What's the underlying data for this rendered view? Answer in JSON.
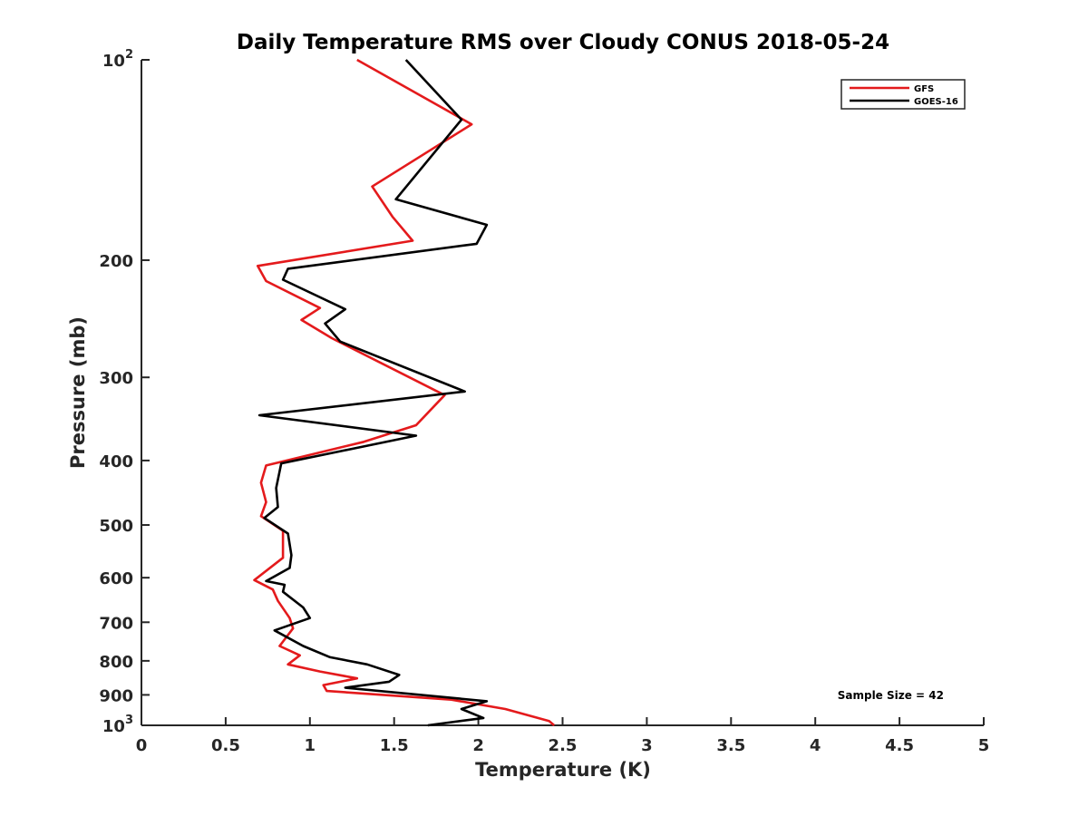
{
  "chart_data": {
    "type": "line",
    "title": "Daily Temperature RMS over Cloudy CONUS 2018-05-24",
    "xlabel": "Temperature (K)",
    "ylabel": "Pressure (mb)",
    "xlim": [
      0,
      5
    ],
    "ylim": [
      1000,
      100
    ],
    "y_scale": "log",
    "y_reversed": true,
    "grid": false,
    "legend_position": "top-right",
    "x_ticks": [
      {
        "value": 0,
        "label": "0"
      },
      {
        "value": 0.5,
        "label": "0.5"
      },
      {
        "value": 1,
        "label": "1"
      },
      {
        "value": 1.5,
        "label": "1.5"
      },
      {
        "value": 2,
        "label": "2"
      },
      {
        "value": 2.5,
        "label": "2.5"
      },
      {
        "value": 3,
        "label": "3"
      },
      {
        "value": 3.5,
        "label": "3.5"
      },
      {
        "value": 4,
        "label": "4"
      },
      {
        "value": 4.5,
        "label": "4.5"
      },
      {
        "value": 5,
        "label": "5"
      }
    ],
    "y_ticks": [
      {
        "value": 100,
        "base": "10",
        "exp": "2"
      },
      {
        "value": 200,
        "label": "200"
      },
      {
        "value": 300,
        "label": "300"
      },
      {
        "value": 400,
        "label": "400"
      },
      {
        "value": 500,
        "label": "500"
      },
      {
        "value": 600,
        "label": "600"
      },
      {
        "value": 700,
        "label": "700"
      },
      {
        "value": 800,
        "label": "800"
      },
      {
        "value": 900,
        "label": "900"
      },
      {
        "value": 1000,
        "base": "10",
        "exp": "3"
      }
    ],
    "series": [
      {
        "name": "GFS",
        "color": "#e41a1c",
        "x": [
          1.28,
          1.96,
          1.37,
          1.49,
          1.61,
          0.69,
          0.74,
          1.06,
          0.95,
          1.13,
          1.8,
          1.63,
          1.32,
          0.74,
          0.71,
          0.74,
          0.71,
          0.84,
          0.84,
          0.67,
          0.78,
          0.81,
          0.88,
          0.9,
          0.82,
          0.94,
          0.87,
          1.06,
          1.28,
          1.08,
          1.1,
          1.84,
          2.16,
          2.42,
          2.45
        ],
        "y": [
          100,
          125,
          155,
          172,
          187,
          204,
          215,
          236,
          246,
          262,
          319,
          354,
          375,
          407,
          432,
          462,
          485,
          510,
          560,
          605,
          625,
          650,
          690,
          715,
          760,
          785,
          810,
          830,
          850,
          870,
          888,
          915,
          945,
          985,
          1000
        ]
      },
      {
        "name": "GOES-16",
        "color": "#000000",
        "x": [
          1.57,
          1.9,
          1.51,
          2.05,
          1.99,
          0.87,
          0.84,
          1.21,
          1.09,
          1.18,
          1.92,
          0.7,
          1.63,
          0.83,
          0.8,
          0.81,
          0.73,
          0.87,
          0.89,
          0.88,
          0.74,
          0.85,
          0.84,
          0.96,
          1.0,
          0.79,
          0.96,
          1.12,
          1.34,
          1.53,
          1.47,
          1.21,
          2.05,
          1.9,
          2.03,
          1.7
        ],
        "y": [
          100,
          123,
          162,
          177,
          189,
          206,
          214,
          237,
          249,
          265,
          315,
          342,
          367,
          404,
          440,
          470,
          488,
          515,
          555,
          580,
          607,
          615,
          630,
          665,
          690,
          720,
          760,
          790,
          810,
          840,
          860,
          878,
          920,
          945,
          975,
          1000
        ]
      }
    ],
    "annotation": "Sample Size = 42"
  }
}
